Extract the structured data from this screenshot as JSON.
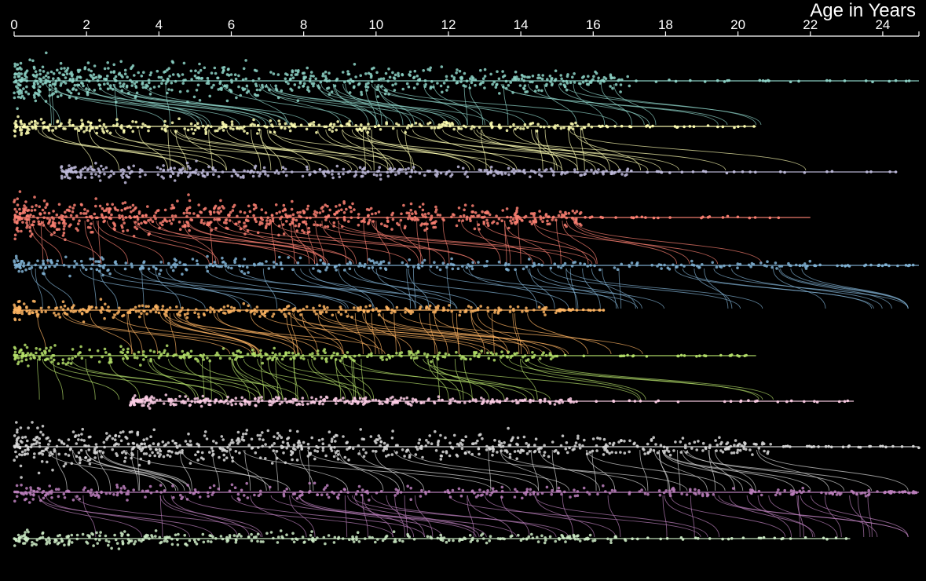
{
  "chart_data": {
    "type": "scatter",
    "title": "",
    "xlabel": "Age in Years",
    "ylabel": "",
    "xlim": [
      0,
      25
    ],
    "x_ticks": [
      "0",
      "2",
      "4",
      "6",
      "8",
      "10",
      "12",
      "14",
      "16",
      "18",
      "20",
      "22",
      "24"
    ],
    "grid": false,
    "legend": "none",
    "background": "#000000",
    "groups": [
      {
        "lanes": [
          {
            "color": "#8dd3c7",
            "start": 0,
            "end": 25,
            "dense_end": 17.0,
            "spread": "wide"
          },
          {
            "color": "#ffffb3",
            "start": 0,
            "end": 20.5,
            "dense_end": 16.0,
            "spread": "medium"
          },
          {
            "color": "#bebada",
            "start": 1.3,
            "end": 24.4,
            "dense_end": 17.0,
            "spread": "medium"
          }
        ]
      },
      {
        "lanes": [
          {
            "color": "#fb8072",
            "start": 0,
            "end": 22.0,
            "dense_end": 15.7,
            "spread": "wide"
          },
          {
            "color": "#80b1d3",
            "start": 0,
            "end": 25,
            "dense_end": 22.0,
            "spread": "medium"
          },
          {
            "color": "#fdb462",
            "start": 0,
            "end": 16.3,
            "dense_end": 15.0,
            "spread": "medium"
          },
          {
            "color": "#b3de69",
            "start": 0,
            "end": 20.5,
            "dense_end": 15.0,
            "spread": "medium"
          },
          {
            "color": "#fccde5",
            "start": 3.2,
            "end": 23.2,
            "dense_end": 15.5,
            "spread": "narrow"
          }
        ]
      },
      {
        "lanes": [
          {
            "color": "#d9d9d9",
            "start": 0,
            "end": 25,
            "dense_end": 21.0,
            "spread": "wide"
          },
          {
            "color": "#bc80bd",
            "start": 0,
            "end": 25,
            "dense_end": 24.0,
            "spread": "medium"
          },
          {
            "color": "#ccebc5",
            "start": 0,
            "end": 23.1,
            "dense_end": 17.0,
            "spread": "medium"
          }
        ]
      }
    ]
  }
}
